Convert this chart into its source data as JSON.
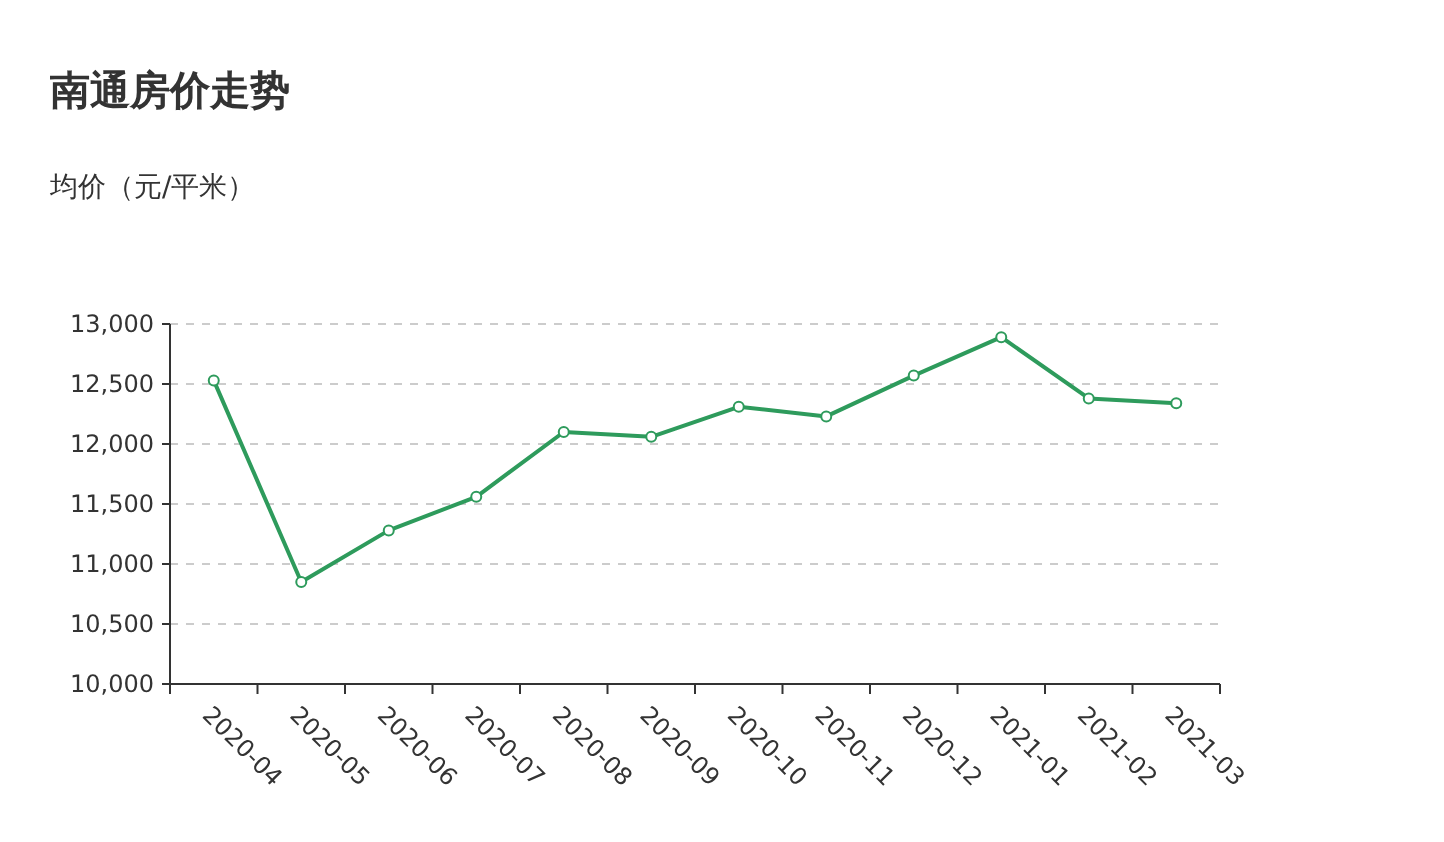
{
  "chart_data": {
    "type": "line",
    "title": "南通房价走势",
    "subtitle": "均价（元/平米）",
    "categories": [
      "2020-04",
      "2020-05",
      "2020-06",
      "2020-07",
      "2020-08",
      "2020-09",
      "2020-10",
      "2020-11",
      "2020-12",
      "2021-01",
      "2021-02",
      "2021-03"
    ],
    "series": [
      {
        "color": "#2e9b5c",
        "values": [
          12530,
          10850,
          11280,
          11560,
          12100,
          12060,
          12310,
          12230,
          12570,
          12890,
          12380,
          12340
        ]
      }
    ],
    "ylim": [
      10000,
      13000
    ],
    "yticks": [
      {
        "value": 10000,
        "label": "10,000"
      },
      {
        "value": 10500,
        "label": "10,500"
      },
      {
        "value": 11000,
        "label": "11,000"
      },
      {
        "value": 11500,
        "label": "11,500"
      },
      {
        "value": 12000,
        "label": "12,000"
      },
      {
        "value": 12500,
        "label": "12,500"
      },
      {
        "value": 13000,
        "label": "13,000"
      }
    ],
    "grid": "y",
    "marker": "circle",
    "line_style": "solid"
  }
}
